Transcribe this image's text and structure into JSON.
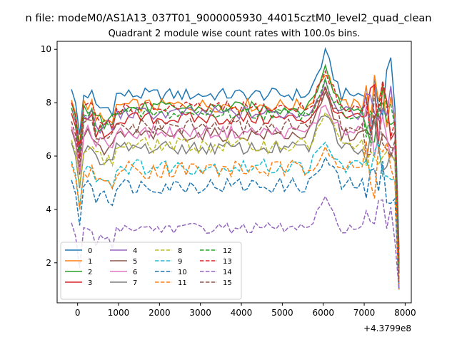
{
  "chart_data": {
    "type": "line",
    "suptitle": "n file: modeM0/AS1A13_037T01_9000005930_44015cztM0_level2_quad_clean",
    "title": "Quadrant 2 module wise count rates with 100.0s bins.",
    "xlabel": "",
    "ylabel": "",
    "x_offset_label": "+4.3799e8",
    "xlim": [
      -500,
      8150
    ],
    "ylim": [
      0.5,
      10.3
    ],
    "xticks": [
      0,
      1000,
      2000,
      3000,
      4000,
      5000,
      6000,
      7000,
      8000
    ],
    "xtick_labels": [
      "0",
      "1000",
      "2000",
      "3000",
      "4000",
      "5000",
      "6000",
      "7000",
      "8000"
    ],
    "yticks": [
      2,
      4,
      6,
      8,
      10
    ],
    "ytick_labels": [
      "2",
      "4",
      "6",
      "8",
      "10"
    ],
    "grid": false,
    "legend_position": "lower-left",
    "legend_columns": 4,
    "x_start": -150,
    "x_step": 100,
    "series": [
      {
        "name": "0",
        "color": "#1f77b4",
        "dash": "solid",
        "base": 8.3,
        "amp": 0.25,
        "peak": 1.5
      },
      {
        "name": "1",
        "color": "#ff7f0e",
        "dash": "solid",
        "base": 7.9,
        "amp": 0.25,
        "peak": 1.3
      },
      {
        "name": "2",
        "color": "#2ca02c",
        "dash": "solid",
        "base": 7.8,
        "amp": 0.25,
        "peak": 1.5
      },
      {
        "name": "3",
        "color": "#d62728",
        "dash": "solid",
        "base": 7.4,
        "amp": 0.25,
        "peak": 1.0
      },
      {
        "name": "4",
        "color": "#9467bd",
        "dash": "solid",
        "base": 7.6,
        "amp": 0.25,
        "peak": 1.2
      },
      {
        "name": "5",
        "color": "#8c564b",
        "dash": "solid",
        "base": 6.8,
        "amp": 0.25,
        "peak": 1.5
      },
      {
        "name": "6",
        "color": "#e377c2",
        "dash": "solid",
        "base": 6.9,
        "amp": 0.25,
        "peak": 1.0
      },
      {
        "name": "7",
        "color": "#7f7f7f",
        "dash": "solid",
        "base": 6.3,
        "amp": 0.25,
        "peak": 1.4
      },
      {
        "name": "8",
        "color": "#bcbd22",
        "dash": "dashed",
        "base": 6.4,
        "amp": 0.3,
        "peak": 1.2
      },
      {
        "name": "9",
        "color": "#17becf",
        "dash": "dashed",
        "base": 5.6,
        "amp": 0.3,
        "peak": 0.8
      },
      {
        "name": "10",
        "color": "#1f77b4",
        "dash": "dashed",
        "base": 4.9,
        "amp": 0.3,
        "peak": 1.0
      },
      {
        "name": "11",
        "color": "#ff7f0e",
        "dash": "dashed",
        "base": 5.5,
        "amp": 0.35,
        "peak": 1.0
      },
      {
        "name": "12",
        "color": "#2ca02c",
        "dash": "dashed",
        "base": 7.6,
        "amp": 0.25,
        "peak": 1.2
      },
      {
        "name": "13",
        "color": "#d62728",
        "dash": "dashed",
        "base": 7.8,
        "amp": 0.25,
        "peak": 1.3
      },
      {
        "name": "14",
        "color": "#9467bd",
        "dash": "dashed",
        "base": 3.3,
        "amp": 0.2,
        "peak": 1.0
      },
      {
        "name": "15",
        "color": "#8c564b",
        "dash": "dashed",
        "base": 7.1,
        "amp": 0.3,
        "peak": 1.6
      }
    ]
  }
}
